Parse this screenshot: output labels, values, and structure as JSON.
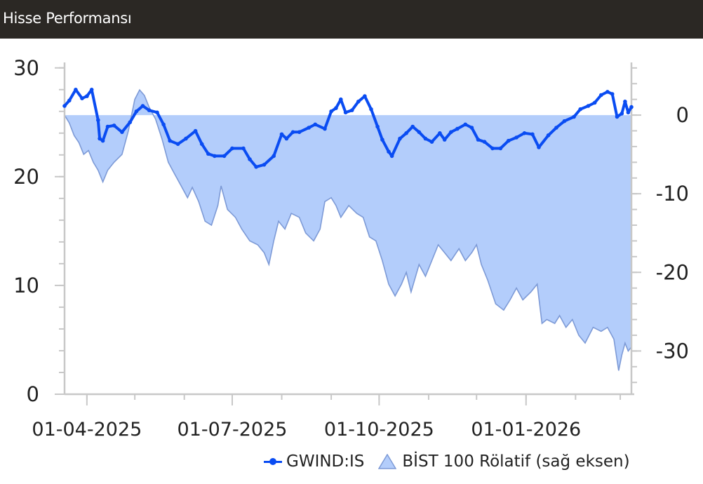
{
  "header": {
    "title": "Hisse Performansı"
  },
  "legend": {
    "stock_label": "GWIND:IS",
    "index_label": "BİST 100 Rölatif (sağ eksen)"
  },
  "colors": {
    "header_bg": "#2b2824",
    "stock_line": "#0a4cf2",
    "index_fill": "#b3cdfb",
    "index_line": "#7d9ad6",
    "axis": "#c8c8c8"
  },
  "chart_data": {
    "type": "line",
    "x_type": "date",
    "x_range": [
      "2025-03-18",
      "2026-03-08"
    ],
    "x_ticks": [
      "01-04-2025",
      "01-07-2025",
      "01-10-2025",
      "01-01-2026"
    ],
    "y_left": {
      "range": [
        0,
        30.5
      ],
      "ticks": [
        0,
        10,
        20,
        30
      ]
    },
    "y_right": {
      "range": [
        -35.5,
        6.7
      ],
      "ticks": [
        0,
        -10,
        -20,
        -30
      ]
    },
    "grid": false,
    "legend_position": "bottom-right",
    "series": [
      {
        "name": "GWIND:IS",
        "axis": "left",
        "style": "line-with-markers",
        "points": [
          [
            "2025-03-18",
            26.5
          ],
          [
            "2025-03-21",
            27.0
          ],
          [
            "2025-03-25",
            28.0
          ],
          [
            "2025-03-29",
            27.2
          ],
          [
            "2025-04-01",
            27.4
          ],
          [
            "2025-04-04",
            28.0
          ],
          [
            "2025-04-08",
            25.2
          ],
          [
            "2025-04-09",
            23.5
          ],
          [
            "2025-04-11",
            23.3
          ],
          [
            "2025-04-14",
            24.6
          ],
          [
            "2025-04-18",
            24.7
          ],
          [
            "2025-04-23",
            24.1
          ],
          [
            "2025-04-28",
            25.0
          ],
          [
            "2025-05-02",
            26.0
          ],
          [
            "2025-05-06",
            26.5
          ],
          [
            "2025-05-10",
            26.1
          ],
          [
            "2025-05-15",
            25.9
          ],
          [
            "2025-05-19",
            24.8
          ],
          [
            "2025-05-23",
            23.3
          ],
          [
            "2025-05-28",
            23.0
          ],
          [
            "2025-06-02",
            23.5
          ],
          [
            "2025-06-08",
            24.2
          ],
          [
            "2025-06-12",
            23.0
          ],
          [
            "2025-06-16",
            22.1
          ],
          [
            "2025-06-20",
            21.9
          ],
          [
            "2025-06-26",
            21.9
          ],
          [
            "2025-07-01",
            22.6
          ],
          [
            "2025-07-08",
            22.6
          ],
          [
            "2025-07-12",
            21.6
          ],
          [
            "2025-07-16",
            20.9
          ],
          [
            "2025-07-21",
            21.1
          ],
          [
            "2025-07-27",
            21.9
          ],
          [
            "2025-08-01",
            23.9
          ],
          [
            "2025-08-04",
            23.5
          ],
          [
            "2025-08-08",
            24.1
          ],
          [
            "2025-08-12",
            24.1
          ],
          [
            "2025-08-18",
            24.5
          ],
          [
            "2025-08-22",
            24.8
          ],
          [
            "2025-08-28",
            24.4
          ],
          [
            "2025-09-01",
            26.0
          ],
          [
            "2025-09-04",
            26.3
          ],
          [
            "2025-09-07",
            27.1
          ],
          [
            "2025-09-10",
            25.9
          ],
          [
            "2025-09-14",
            26.1
          ],
          [
            "2025-09-18",
            26.9
          ],
          [
            "2025-09-22",
            27.4
          ],
          [
            "2025-09-26",
            26.2
          ],
          [
            "2025-09-30",
            24.6
          ],
          [
            "2025-10-03",
            23.4
          ],
          [
            "2025-10-07",
            22.3
          ],
          [
            "2025-10-09",
            21.9
          ],
          [
            "2025-10-14",
            23.5
          ],
          [
            "2025-10-18",
            24.0
          ],
          [
            "2025-10-22",
            24.6
          ],
          [
            "2025-10-26",
            24.1
          ],
          [
            "2025-10-30",
            23.5
          ],
          [
            "2025-11-03",
            23.2
          ],
          [
            "2025-11-08",
            24.0
          ],
          [
            "2025-11-11",
            23.4
          ],
          [
            "2025-11-15",
            24.1
          ],
          [
            "2025-11-19",
            24.4
          ],
          [
            "2025-11-24",
            24.8
          ],
          [
            "2025-11-28",
            24.5
          ],
          [
            "2025-12-02",
            23.4
          ],
          [
            "2025-12-06",
            23.2
          ],
          [
            "2025-12-11",
            22.6
          ],
          [
            "2025-12-16",
            22.6
          ],
          [
            "2025-12-21",
            23.3
          ],
          [
            "2025-12-26",
            23.6
          ],
          [
            "2025-12-31",
            24.0
          ],
          [
            "2026-01-05",
            23.9
          ],
          [
            "2026-01-09",
            22.7
          ],
          [
            "2026-01-15",
            23.8
          ],
          [
            "2026-01-20",
            24.5
          ],
          [
            "2026-01-25",
            25.1
          ],
          [
            "2026-01-31",
            25.5
          ],
          [
            "2026-02-04",
            26.2
          ],
          [
            "2026-02-09",
            26.5
          ],
          [
            "2026-02-13",
            26.8
          ],
          [
            "2026-02-17",
            27.5
          ],
          [
            "2026-02-21",
            27.8
          ],
          [
            "2026-02-24",
            27.6
          ],
          [
            "2026-02-27",
            25.5
          ],
          [
            "2026-03-02",
            25.8
          ],
          [
            "2026-03-04",
            26.9
          ],
          [
            "2026-03-06",
            25.9
          ],
          [
            "2026-03-08",
            26.4
          ]
        ]
      },
      {
        "name": "BİST 100 Rölatif (sağ eksen)",
        "axis": "right",
        "style": "area",
        "baseline": 0,
        "points": [
          [
            "2025-03-18",
            0.0
          ],
          [
            "2025-03-21",
            -1.0
          ],
          [
            "2025-03-24",
            -2.6
          ],
          [
            "2025-03-27",
            -3.5
          ],
          [
            "2025-03-30",
            -5.0
          ],
          [
            "2025-04-02",
            -4.5
          ],
          [
            "2025-04-05",
            -6.0
          ],
          [
            "2025-04-08",
            -7.0
          ],
          [
            "2025-04-11",
            -8.5
          ],
          [
            "2025-04-14",
            -7.0
          ],
          [
            "2025-04-18",
            -6.0
          ],
          [
            "2025-04-23",
            -5.0
          ],
          [
            "2025-04-27",
            -2.0
          ],
          [
            "2025-05-01",
            2.0
          ],
          [
            "2025-05-04",
            3.2
          ],
          [
            "2025-05-07",
            2.5
          ],
          [
            "2025-05-10",
            1.0
          ],
          [
            "2025-05-14",
            -0.5
          ],
          [
            "2025-05-18",
            -3.0
          ],
          [
            "2025-05-22",
            -6.0
          ],
          [
            "2025-05-26",
            -7.5
          ],
          [
            "2025-05-30",
            -9.0
          ],
          [
            "2025-06-03",
            -10.5
          ],
          [
            "2025-06-06",
            -9.2
          ],
          [
            "2025-06-10",
            -11.0
          ],
          [
            "2025-06-14",
            -13.5
          ],
          [
            "2025-06-18",
            -14.0
          ],
          [
            "2025-06-22",
            -11.5
          ],
          [
            "2025-06-24",
            -9.0
          ],
          [
            "2025-06-28",
            -12.0
          ],
          [
            "2025-07-03",
            -13.0
          ],
          [
            "2025-07-07",
            -14.5
          ],
          [
            "2025-07-12",
            -16.0
          ],
          [
            "2025-07-17",
            -16.5
          ],
          [
            "2025-07-21",
            -17.5
          ],
          [
            "2025-07-24",
            -19.0
          ],
          [
            "2025-07-27",
            -16.0
          ],
          [
            "2025-07-30",
            -13.5
          ],
          [
            "2025-08-03",
            -14.5
          ],
          [
            "2025-08-07",
            -12.5
          ],
          [
            "2025-08-12",
            -13.0
          ],
          [
            "2025-08-16",
            -15.0
          ],
          [
            "2025-08-21",
            -16.0
          ],
          [
            "2025-08-25",
            -14.5
          ],
          [
            "2025-08-28",
            -11.0
          ],
          [
            "2025-09-01",
            -10.5
          ],
          [
            "2025-09-04",
            -11.5
          ],
          [
            "2025-09-07",
            -13.0
          ],
          [
            "2025-09-12",
            -11.5
          ],
          [
            "2025-09-17",
            -12.5
          ],
          [
            "2025-09-21",
            -13.0
          ],
          [
            "2025-09-25",
            -15.5
          ],
          [
            "2025-09-29",
            -16.0
          ],
          [
            "2025-10-03",
            -18.5
          ],
          [
            "2025-10-07",
            -21.5
          ],
          [
            "2025-10-11",
            -23.0
          ],
          [
            "2025-10-15",
            -21.5
          ],
          [
            "2025-10-18",
            -20.0
          ],
          [
            "2025-10-21",
            -22.5
          ],
          [
            "2025-10-26",
            -19.0
          ],
          [
            "2025-10-30",
            -20.5
          ],
          [
            "2025-11-03",
            -18.5
          ],
          [
            "2025-11-07",
            -16.5
          ],
          [
            "2025-11-11",
            -17.5
          ],
          [
            "2025-11-15",
            -18.5
          ],
          [
            "2025-11-20",
            -17.0
          ],
          [
            "2025-11-24",
            -18.5
          ],
          [
            "2025-11-28",
            -17.5
          ],
          [
            "2025-12-01",
            -16.5
          ],
          [
            "2025-12-04",
            -19.0
          ],
          [
            "2025-12-08",
            -21.0
          ],
          [
            "2025-12-13",
            -24.0
          ],
          [
            "2025-12-18",
            -24.8
          ],
          [
            "2025-12-22",
            -23.5
          ],
          [
            "2025-12-26",
            -22.0
          ],
          [
            "2025-12-30",
            -23.5
          ],
          [
            "2026-01-04",
            -22.5
          ],
          [
            "2026-01-08",
            -21.5
          ],
          [
            "2026-01-11",
            -26.5
          ],
          [
            "2026-01-14",
            -26.0
          ],
          [
            "2026-01-19",
            -26.5
          ],
          [
            "2026-01-22",
            -25.5
          ],
          [
            "2026-01-26",
            -27.0
          ],
          [
            "2026-01-30",
            -26.0
          ],
          [
            "2026-02-03",
            -28.0
          ],
          [
            "2026-02-07",
            -29.0
          ],
          [
            "2026-02-12",
            -27.0
          ],
          [
            "2026-02-17",
            -27.5
          ],
          [
            "2026-02-21",
            -27.0
          ],
          [
            "2026-02-25",
            -28.5
          ],
          [
            "2026-02-28",
            -32.5
          ],
          [
            "2026-03-02",
            -30.5
          ],
          [
            "2026-03-04",
            -29.0
          ],
          [
            "2026-03-06",
            -30.0
          ],
          [
            "2026-03-08",
            -29.5
          ]
        ]
      }
    ]
  }
}
